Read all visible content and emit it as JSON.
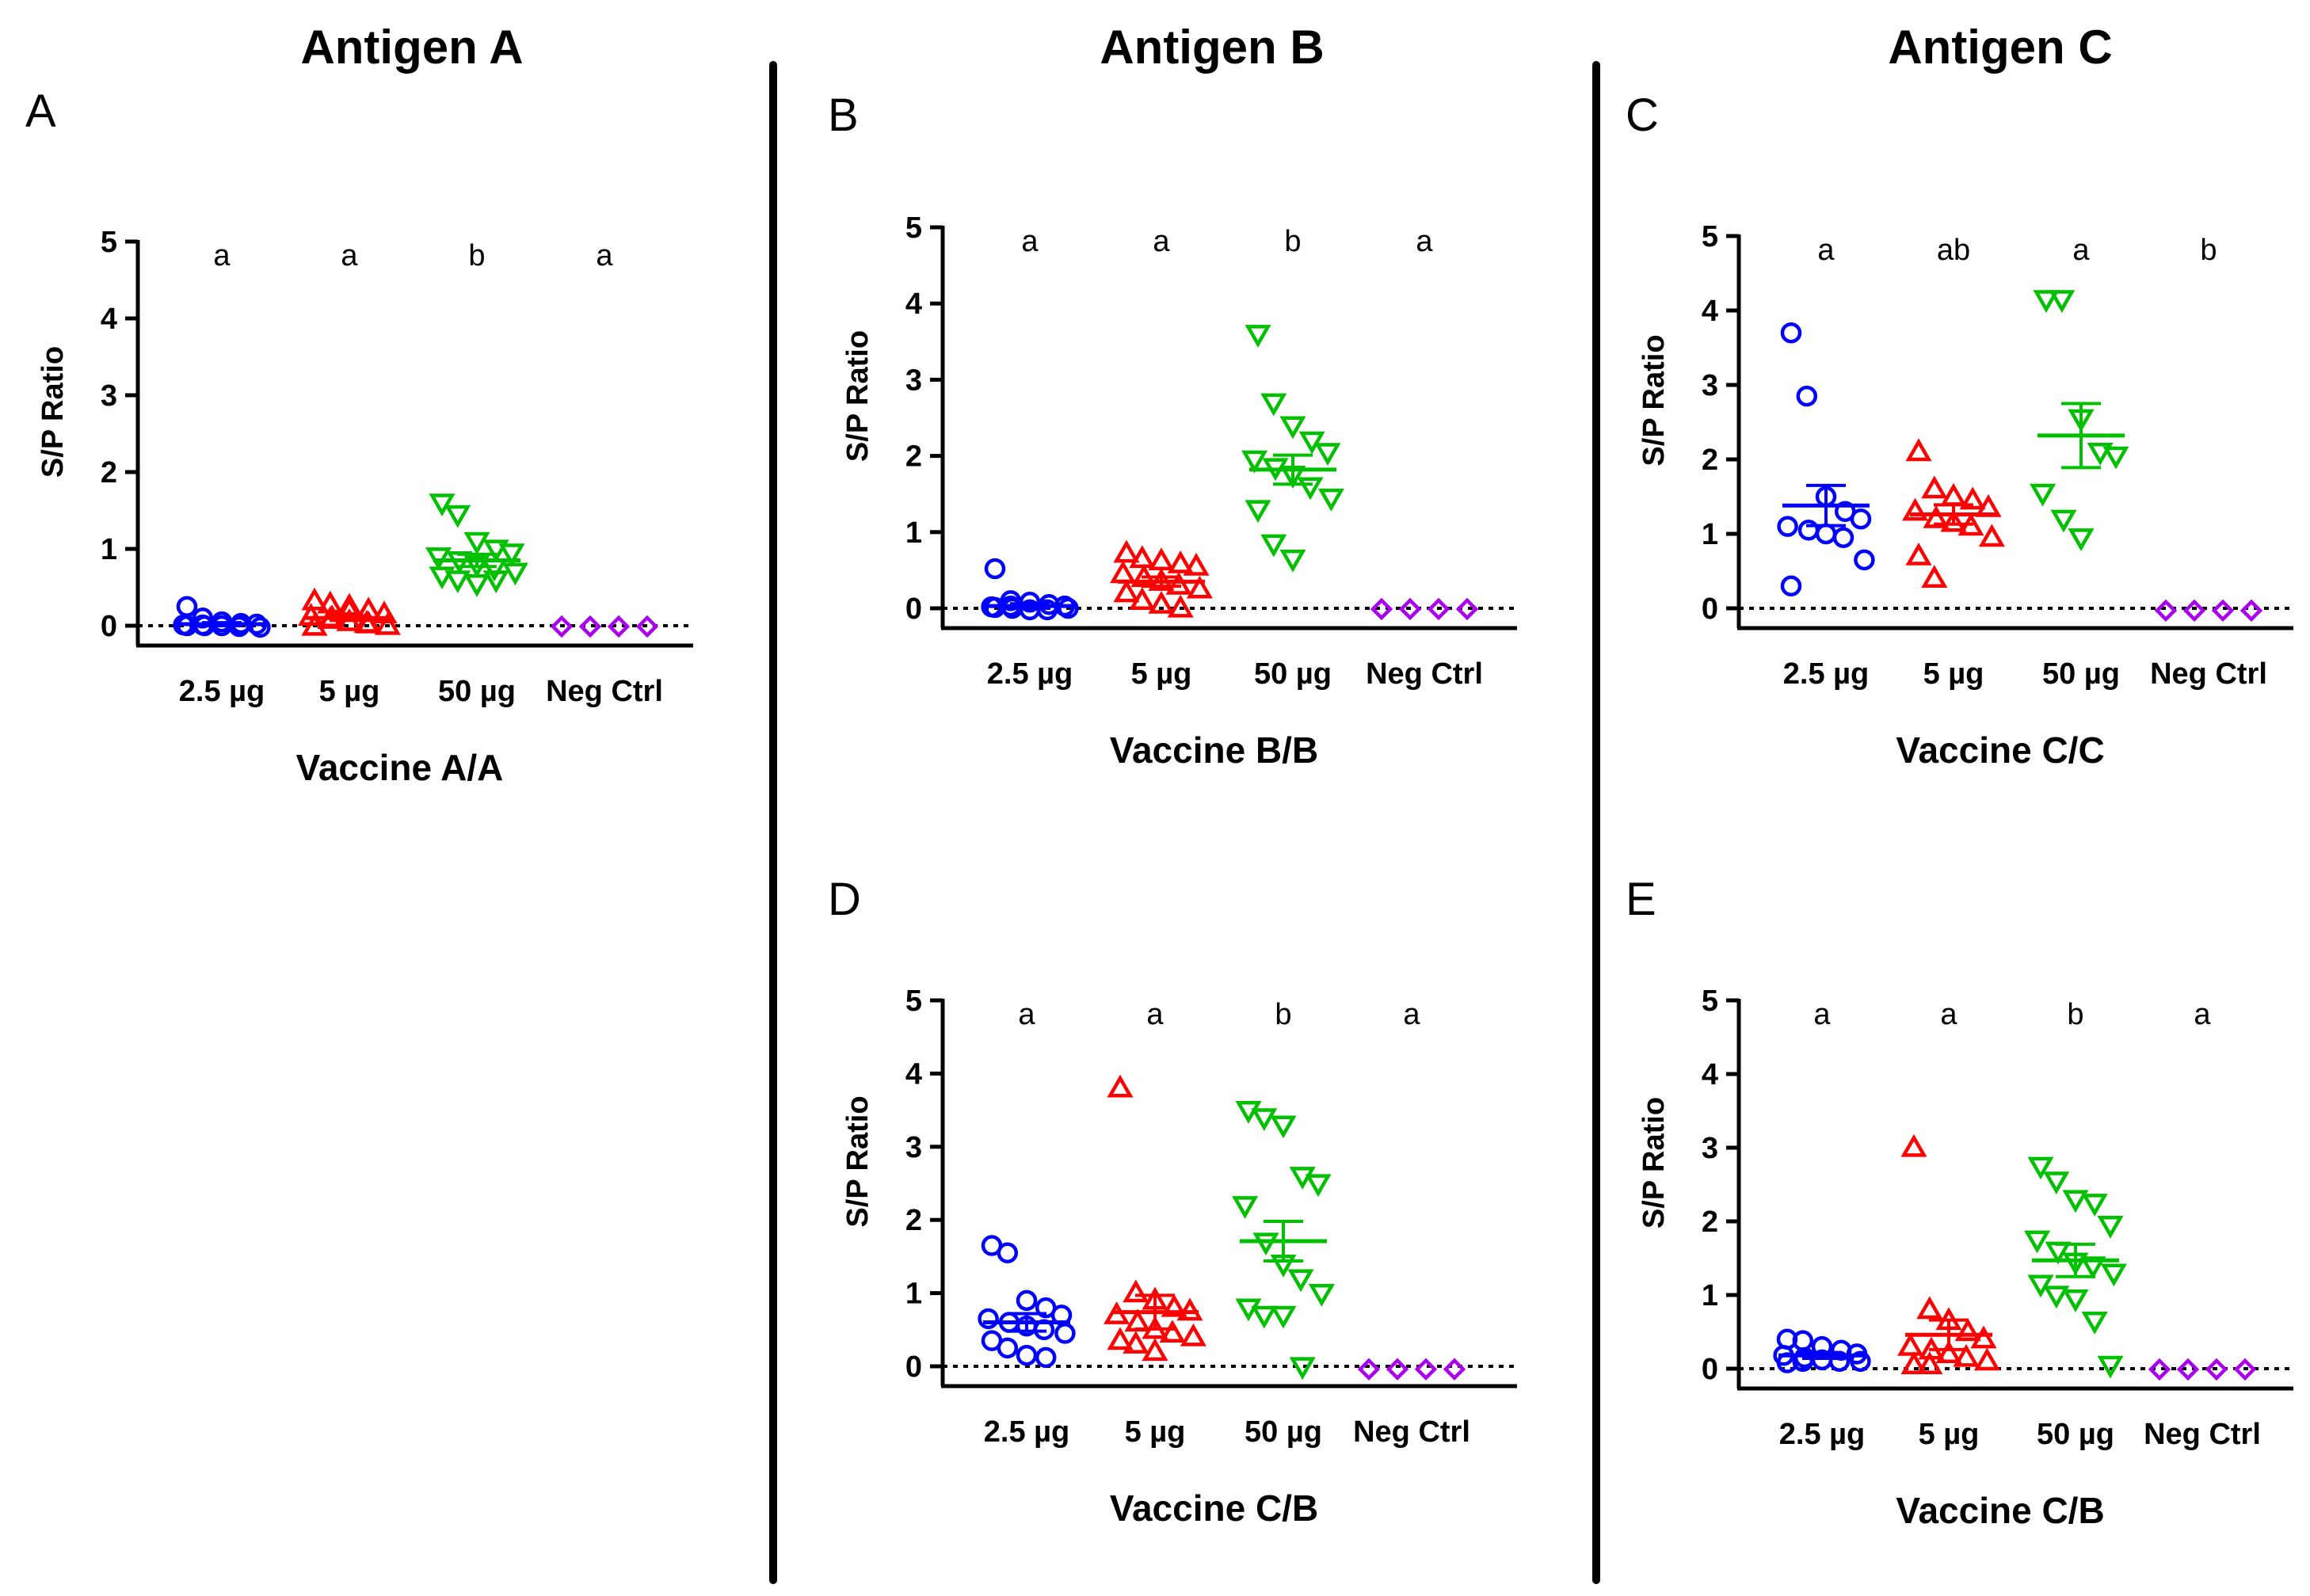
{
  "columns": [
    {
      "title": "Antigen A"
    },
    {
      "title": "Antigen B"
    },
    {
      "title": "Antigen C"
    }
  ],
  "colors": {
    "2.5 µg": "#0000ff",
    "5 µg": "#ff0000",
    "50 µg": "#00c000",
    "Neg Ctrl": "#aa00ee",
    "axis": "#000000",
    "divider": "#000000"
  },
  "chart_data": [
    {
      "panel": "A",
      "type": "scatter",
      "title": "Antigen A",
      "xlabel": "Vaccine A/A",
      "ylabel": "S/P Ratio",
      "ylim": [
        0,
        5
      ],
      "yticks": [
        0,
        1,
        2,
        3,
        4,
        5
      ],
      "categories": [
        "2.5 µg",
        "5 µg",
        "50 µg",
        "Neg Ctrl"
      ],
      "letters": [
        "a",
        "a",
        "b",
        "a"
      ],
      "reference_line": 0,
      "series": [
        {
          "name": "2.5 µg",
          "marker": "circle",
          "mean": 0.02,
          "sem": 0.02,
          "values": [
            0.25,
            0.1,
            0.05,
            0.03,
            0.02,
            0.01,
            0.0,
            0.0,
            -0.01,
            -0.02,
            0.0,
            0.01
          ]
        },
        {
          "name": "5 µg",
          "marker": "triangle-up",
          "mean": 0.1,
          "sem": 0.03,
          "values": [
            0.32,
            0.28,
            0.25,
            0.2,
            0.15,
            0.12,
            0.1,
            0.05,
            0.03,
            0.0,
            -0.01,
            0.08,
            0.2,
            0.02
          ]
        },
        {
          "name": "50 µg",
          "marker": "triangle-down",
          "mean": 0.85,
          "sem": 0.08,
          "values": [
            1.6,
            1.45,
            1.1,
            1.0,
            0.95,
            0.9,
            0.85,
            0.8,
            0.75,
            0.7,
            0.65,
            0.6,
            0.55,
            0.6
          ]
        },
        {
          "name": "Neg Ctrl",
          "marker": "diamond",
          "mean": 0.0,
          "sem": 0.0,
          "values": [
            -0.01,
            -0.01,
            -0.01,
            -0.01
          ]
        }
      ]
    },
    {
      "panel": "B",
      "type": "scatter",
      "title": "Antigen B",
      "xlabel": "Vaccine B/B",
      "ylabel": "S/P Ratio",
      "ylim": [
        0,
        5
      ],
      "yticks": [
        0,
        1,
        2,
        3,
        4,
        5
      ],
      "categories": [
        "2.5 µg",
        "5 µg",
        "50 µg",
        "Neg Ctrl"
      ],
      "letters": [
        "a",
        "a",
        "b",
        "a"
      ],
      "reference_line": 0,
      "series": [
        {
          "name": "2.5 µg",
          "marker": "circle",
          "mean": 0.03,
          "sem": 0.03,
          "values": [
            0.52,
            0.1,
            0.08,
            0.05,
            0.03,
            0.02,
            0.0,
            -0.02,
            -0.02,
            0.0,
            0.01,
            0.03
          ]
        },
        {
          "name": "5 µg",
          "marker": "triangle-up",
          "mean": 0.35,
          "sem": 0.06,
          "values": [
            0.72,
            0.65,
            0.62,
            0.58,
            0.55,
            0.45,
            0.4,
            0.35,
            0.3,
            0.25,
            0.2,
            0.1,
            0.05,
            0.0
          ]
        },
        {
          "name": "50 µg",
          "marker": "triangle-down",
          "mean": 1.82,
          "sem": 0.19,
          "values": [
            3.6,
            2.7,
            2.4,
            2.2,
            2.05,
            1.95,
            1.85,
            1.75,
            1.6,
            1.45,
            1.3,
            0.85,
            0.65
          ]
        },
        {
          "name": "Neg Ctrl",
          "marker": "diamond",
          "mean": 0.0,
          "sem": 0.0,
          "values": [
            -0.01,
            -0.01,
            -0.01,
            -0.01
          ]
        }
      ]
    },
    {
      "panel": "C",
      "type": "scatter",
      "title": "Antigen C",
      "xlabel": "Vaccine C/C",
      "ylabel": "S/P Ratio",
      "ylim": [
        0,
        5
      ],
      "yticks": [
        0,
        1,
        2,
        3,
        4,
        5
      ],
      "categories": [
        "2.5 µg",
        "5 µg",
        "50 µg",
        "Neg Ctrl"
      ],
      "letters": [
        "a",
        "ab",
        "a",
        "b"
      ],
      "reference_line": 0,
      "series": [
        {
          "name": "2.5 µg",
          "marker": "circle",
          "mean": 1.38,
          "sem": 0.27,
          "values": [
            3.7,
            2.85,
            1.5,
            1.3,
            1.2,
            1.1,
            1.05,
            1.0,
            0.95,
            0.65,
            0.3
          ]
        },
        {
          "name": "5 µg",
          "marker": "triangle-up",
          "mean": 1.26,
          "sem": 0.13,
          "values": [
            2.1,
            1.6,
            1.5,
            1.45,
            1.35,
            1.3,
            1.2,
            1.15,
            1.1,
            0.95,
            0.7,
            0.4
          ]
        },
        {
          "name": "50 µg",
          "marker": "triangle-down",
          "mean": 2.32,
          "sem": 0.43,
          "values": [
            4.15,
            4.15,
            2.55,
            2.1,
            2.05,
            1.55,
            1.2,
            0.95
          ]
        },
        {
          "name": "Neg Ctrl",
          "marker": "diamond",
          "mean": -0.02,
          "sem": 0.0,
          "values": [
            -0.03,
            -0.03,
            -0.03,
            -0.03
          ]
        }
      ]
    },
    {
      "panel": "D",
      "type": "scatter",
      "title": "Antigen B",
      "xlabel": "Vaccine C/B",
      "ylabel": "S/P Ratio",
      "ylim": [
        0,
        5
      ],
      "yticks": [
        0,
        1,
        2,
        3,
        4,
        5
      ],
      "categories": [
        "2.5 µg",
        "5 µg",
        "50 µg",
        "Neg Ctrl"
      ],
      "letters": [
        "a",
        "a",
        "b",
        "a"
      ],
      "reference_line": 0,
      "series": [
        {
          "name": "2.5 µg",
          "marker": "circle",
          "mean": 0.6,
          "sem": 0.12,
          "values": [
            1.65,
            1.55,
            0.9,
            0.8,
            0.7,
            0.65,
            0.6,
            0.55,
            0.5,
            0.45,
            0.35,
            0.25,
            0.15,
            0.12
          ]
        },
        {
          "name": "5 µg",
          "marker": "triangle-up",
          "mean": 0.74,
          "sem": 0.23,
          "values": [
            3.8,
            1.0,
            0.9,
            0.8,
            0.75,
            0.7,
            0.6,
            0.5,
            0.45,
            0.4,
            0.35,
            0.3,
            0.2
          ]
        },
        {
          "name": "50 µg",
          "marker": "triangle-down",
          "mean": 1.71,
          "sem": 0.27,
          "values": [
            3.5,
            3.4,
            3.3,
            2.6,
            2.5,
            2.2,
            1.7,
            1.4,
            1.2,
            1.0,
            0.8,
            0.7,
            0.7,
            0.0
          ]
        },
        {
          "name": "Neg Ctrl",
          "marker": "diamond",
          "mean": -0.04,
          "sem": 0.0,
          "values": [
            -0.04,
            -0.04,
            -0.04,
            -0.04
          ]
        }
      ]
    },
    {
      "panel": "E",
      "type": "scatter",
      "title": "Antigen C",
      "xlabel": "Vaccine C/B",
      "ylabel": "S/P Ratio",
      "ylim": [
        0,
        5
      ],
      "yticks": [
        0,
        1,
        2,
        3,
        4,
        5
      ],
      "categories": [
        "2.5 µg",
        "5 µg",
        "50 µg",
        "Neg Ctrl"
      ],
      "letters": [
        "a",
        "a",
        "b",
        "a"
      ],
      "reference_line": 0,
      "series": [
        {
          "name": "2.5 µg",
          "marker": "circle",
          "mean": 0.18,
          "sem": 0.04,
          "values": [
            0.4,
            0.38,
            0.3,
            0.25,
            0.2,
            0.18,
            0.15,
            0.12,
            0.1,
            0.1,
            0.08,
            0.1
          ]
        },
        {
          "name": "5 µg",
          "marker": "triangle-up",
          "mean": 0.46,
          "sem": 0.2,
          "values": [
            3.0,
            0.8,
            0.65,
            0.5,
            0.4,
            0.3,
            0.25,
            0.2,
            0.15,
            0.1,
            0.05,
            0.05
          ]
        },
        {
          "name": "50 µg",
          "marker": "triangle-down",
          "mean": 1.47,
          "sem": 0.22,
          "values": [
            2.75,
            2.55,
            2.3,
            2.25,
            1.95,
            1.75,
            1.6,
            1.45,
            1.4,
            1.3,
            1.15,
            1.0,
            0.95,
            0.65,
            0.05
          ]
        },
        {
          "name": "Neg Ctrl",
          "marker": "diamond",
          "mean": -0.01,
          "sem": 0.0,
          "values": [
            -0.01,
            -0.01,
            -0.01,
            -0.01
          ]
        }
      ]
    }
  ]
}
